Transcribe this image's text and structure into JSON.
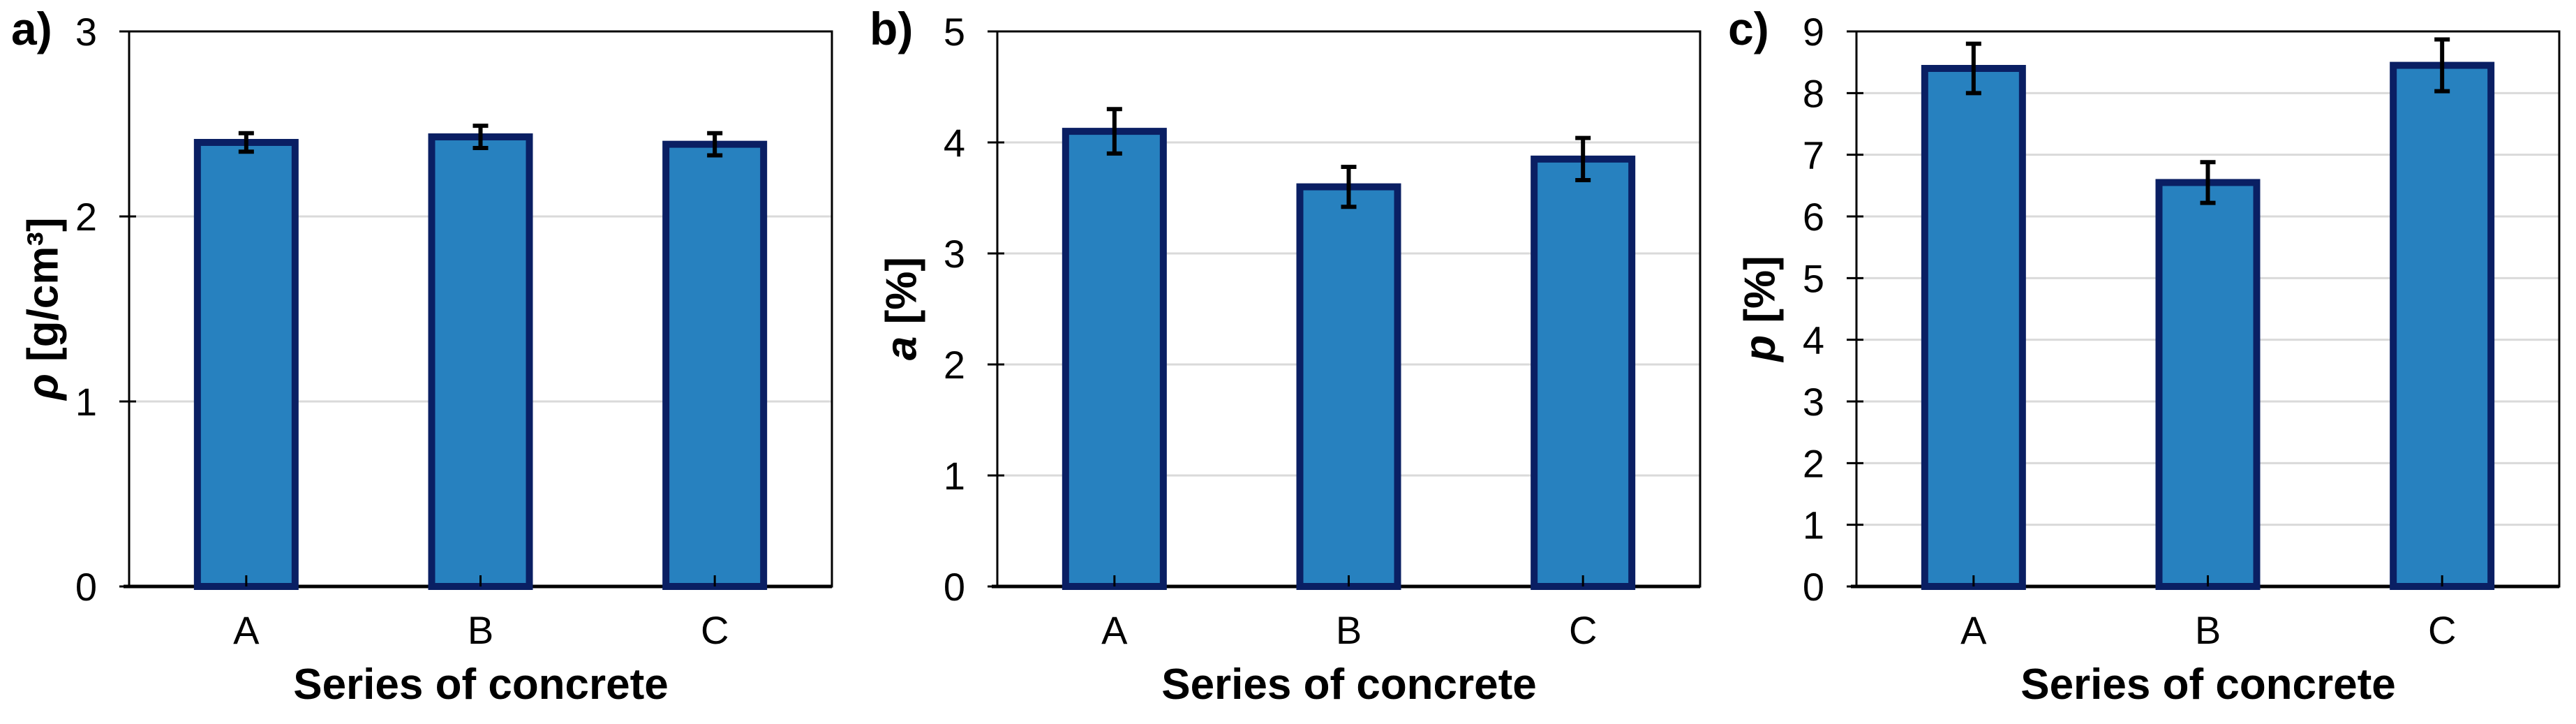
{
  "chart_data": [
    {
      "type": "bar",
      "panel_label": "a)",
      "ylabel": "ρ [g/cm³]",
      "y_symbol": "ρ",
      "y_unit": "[g/cm³]",
      "xlabel": "Series of concrete",
      "categories": [
        "A",
        "B",
        "C"
      ],
      "values": [
        2.4,
        2.43,
        2.39
      ],
      "errors": [
        0.05,
        0.06,
        0.06
      ],
      "ylim": [
        0,
        3
      ],
      "yticks": [
        0,
        1,
        2,
        3
      ],
      "grid": true,
      "legend": false
    },
    {
      "type": "bar",
      "panel_label": "b)",
      "ylabel": "a [%]",
      "y_symbol": "a",
      "y_unit": "[%]",
      "xlabel": "Series of concrete",
      "categories": [
        "A",
        "B",
        "C"
      ],
      "values": [
        4.1,
        3.6,
        3.85
      ],
      "errors": [
        0.2,
        0.18,
        0.19
      ],
      "ylim": [
        0,
        5
      ],
      "yticks": [
        0,
        1,
        2,
        3,
        4,
        5
      ],
      "grid": true,
      "legend": false
    },
    {
      "type": "bar",
      "panel_label": "c)",
      "ylabel": "p [%]",
      "y_symbol": "p",
      "y_unit": "[%]",
      "xlabel": "Series of concrete",
      "categories": [
        "A",
        "B",
        "C"
      ],
      "values": [
        8.4,
        6.55,
        8.45
      ],
      "errors": [
        0.4,
        0.33,
        0.42
      ],
      "ylim": [
        0,
        9
      ],
      "yticks": [
        0,
        1,
        2,
        3,
        4,
        5,
        6,
        7,
        8,
        9
      ],
      "grid": true,
      "legend": false
    }
  ],
  "style": {
    "bar_fill": "#2781BF",
    "bar_border": "#0A1F63",
    "grid_color": "#DADADA",
    "axis_color": "#000000",
    "error_color": "#000000",
    "text_color": "#000000"
  }
}
